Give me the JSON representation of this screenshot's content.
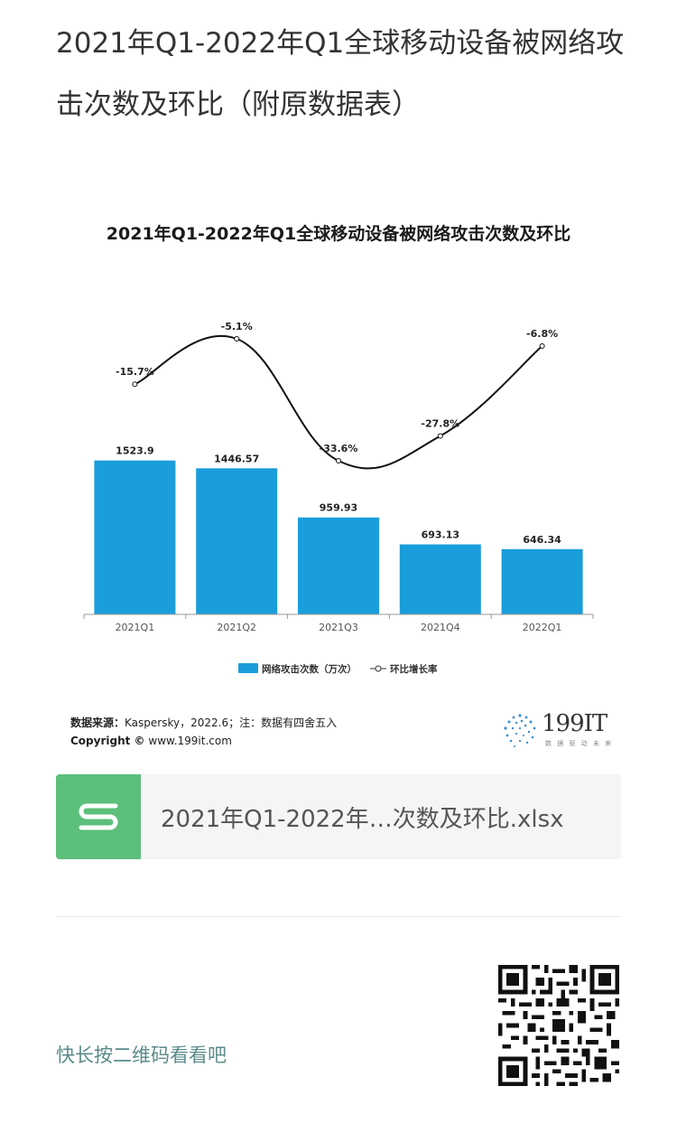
{
  "page": {
    "title": "2021年Q1-2022年Q1全球移动设备被网络攻击次数及环比（附原数据表）"
  },
  "chart_data": {
    "type": "bar",
    "title": "2021年Q1-2022年Q1全球移动设备被网络攻击次数及环比",
    "categories": [
      "2021Q1",
      "2021Q2",
      "2021Q3",
      "2021Q4",
      "2022Q1"
    ],
    "series": [
      {
        "name": "网络攻击次数（万次）",
        "type": "bar",
        "values": [
          1523.9,
          1446.57,
          959.93,
          693.13,
          646.34
        ],
        "labels": [
          "1523.9",
          "1446.57",
          "959.93",
          "693.13",
          "646.34"
        ],
        "color": "#1a9ddb"
      },
      {
        "name": "环比增长率",
        "type": "line",
        "values": [
          -15.7,
          -5.1,
          -33.6,
          -27.8,
          -6.8
        ],
        "labels": [
          "-15.7%",
          "-5.1%",
          "-33.6%",
          "-27.8%",
          "-6.8%"
        ],
        "color": "#111111"
      }
    ],
    "legend": {
      "position": "bottom",
      "bar_label": "网络攻击次数（万次）",
      "line_label": "环比增长率"
    },
    "grid": false
  },
  "source": {
    "label": "数据来源：",
    "text": "Kaspersky，2022.6；注：数据有四舍五入",
    "copyright_label": "Copyright ©",
    "copyright_text": "www.199it.com"
  },
  "brand": {
    "name": "199IT",
    "tagline": "数 据 驱 动 未 来"
  },
  "attachment": {
    "file_name": "2021年Q1-2022年…次数及环比.xlsx",
    "icon": "spreadsheet-s-icon",
    "icon_color": "#5cbf7a"
  },
  "footer": {
    "qr_hint": "快长按二维码看看吧",
    "qr_icon": "qr-code-icon"
  }
}
